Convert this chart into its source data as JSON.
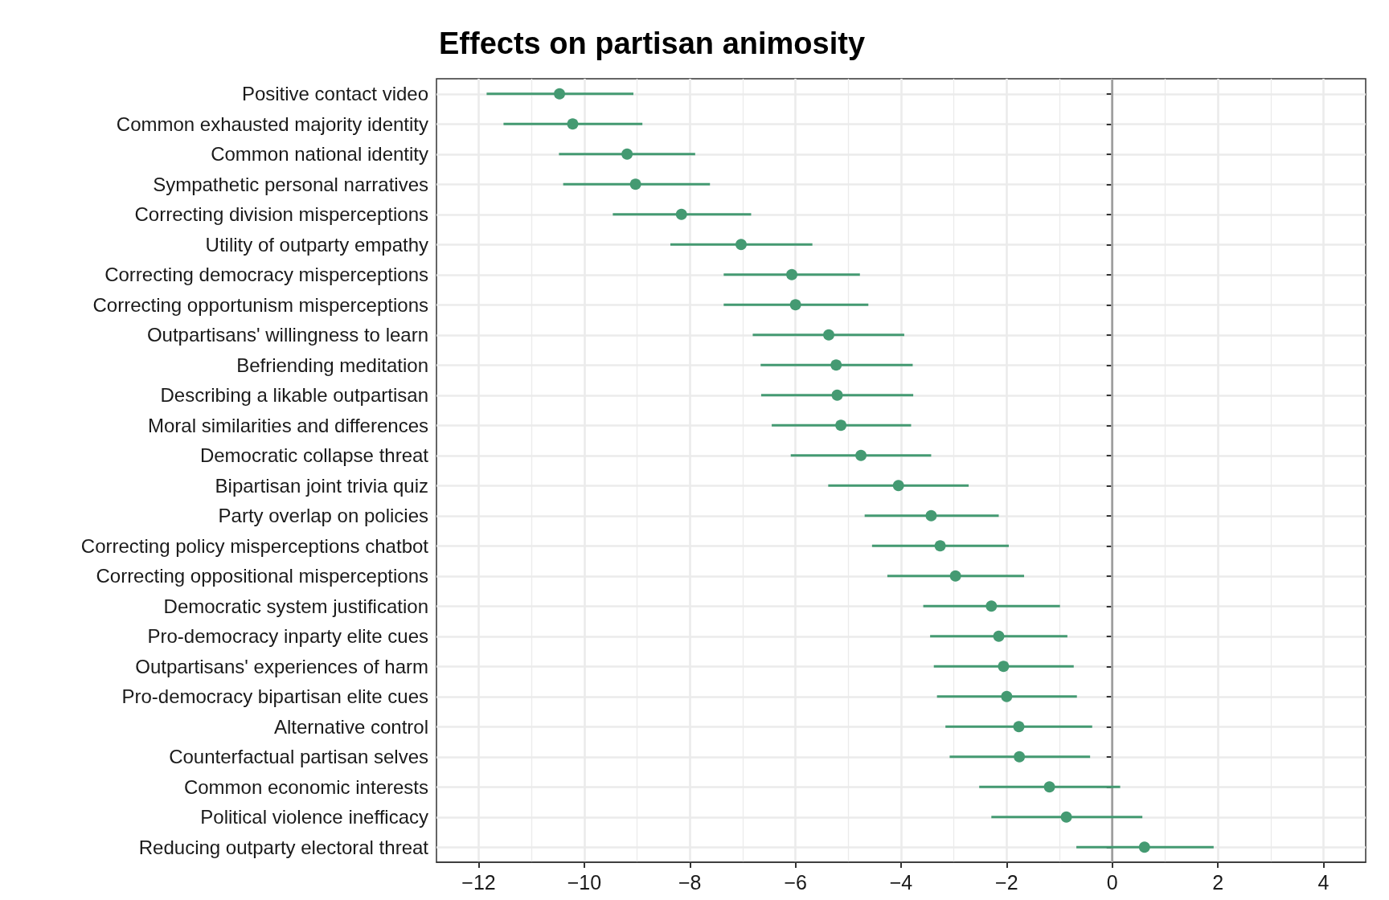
{
  "chart_data": {
    "type": "scatter",
    "title": "Effects on partisan animosity",
    "orientation": "horizontal",
    "categories": [
      "Positive contact video",
      "Common exhausted majority identity",
      "Common national identity",
      "Sympathetic personal narratives",
      "Correcting division misperceptions",
      "Utility of outparty empathy",
      "Correcting democracy misperceptions",
      "Correcting opportunism misperceptions",
      "Outpartisans' willingness to learn",
      "Befriending meditation",
      "Describing a likable outpartisan",
      "Moral similarities and differences",
      "Democratic collapse threat",
      "Bipartisan joint trivia quiz",
      "Party overlap on policies",
      "Correcting policy misperceptions chatbot",
      "Correcting oppositional misperceptions",
      "Democratic system justification",
      "Pro-democracy inparty elite cues",
      "Outpartisans' experiences of harm",
      "Pro-democracy bipartisan elite cues",
      "Alternative control",
      "Counterfactual partisan selves",
      "Common economic interests",
      "Political violence inefficacy",
      "Reducing outparty electoral threat"
    ],
    "values": [
      -10.47,
      -10.22,
      -9.19,
      -9.03,
      -8.16,
      -7.03,
      -6.07,
      -6.0,
      -5.37,
      -5.23,
      -5.21,
      -5.14,
      -4.76,
      -4.05,
      -3.43,
      -3.26,
      -2.97,
      -2.29,
      -2.15,
      -2.06,
      -2.0,
      -1.77,
      -1.76,
      -1.19,
      -0.87,
      0.61
    ],
    "errors": [
      [
        -11.85,
        -9.07
      ],
      [
        -11.53,
        -8.9
      ],
      [
        -10.48,
        -7.9
      ],
      [
        -10.4,
        -7.62
      ],
      [
        -9.46,
        -6.84
      ],
      [
        -8.37,
        -5.68
      ],
      [
        -7.36,
        -4.78
      ],
      [
        -7.36,
        -4.62
      ],
      [
        -6.81,
        -3.94
      ],
      [
        -6.66,
        -3.78
      ],
      [
        -6.65,
        -3.77
      ],
      [
        -6.45,
        -3.81
      ],
      [
        -6.09,
        -3.43
      ],
      [
        -5.38,
        -2.72
      ],
      [
        -4.69,
        -2.15
      ],
      [
        -4.55,
        -1.96
      ],
      [
        -4.26,
        -1.67
      ],
      [
        -3.58,
        -0.99
      ],
      [
        -3.45,
        -0.85
      ],
      [
        -3.38,
        -0.73
      ],
      [
        -3.32,
        -0.67
      ],
      [
        -3.16,
        -0.38
      ],
      [
        -3.08,
        -0.42
      ],
      [
        -2.52,
        0.15
      ],
      [
        -2.29,
        0.57
      ],
      [
        -0.68,
        1.92
      ]
    ],
    "color": "#449a72",
    "marker": "circle",
    "xlim": [
      -12.8,
      4.8
    ],
    "xticks": [
      {
        "value": -12,
        "label": "−12"
      },
      {
        "value": -10,
        "label": "−10"
      },
      {
        "value": -8,
        "label": "−8"
      },
      {
        "value": -6,
        "label": "−6"
      },
      {
        "value": -4,
        "label": "−4"
      },
      {
        "value": -2,
        "label": "−2"
      },
      0,
      2,
      4
    ],
    "grid": true,
    "ref_lines": [
      {
        "axis": "x",
        "value": 0,
        "color": "#a6a6a6"
      }
    ]
  }
}
